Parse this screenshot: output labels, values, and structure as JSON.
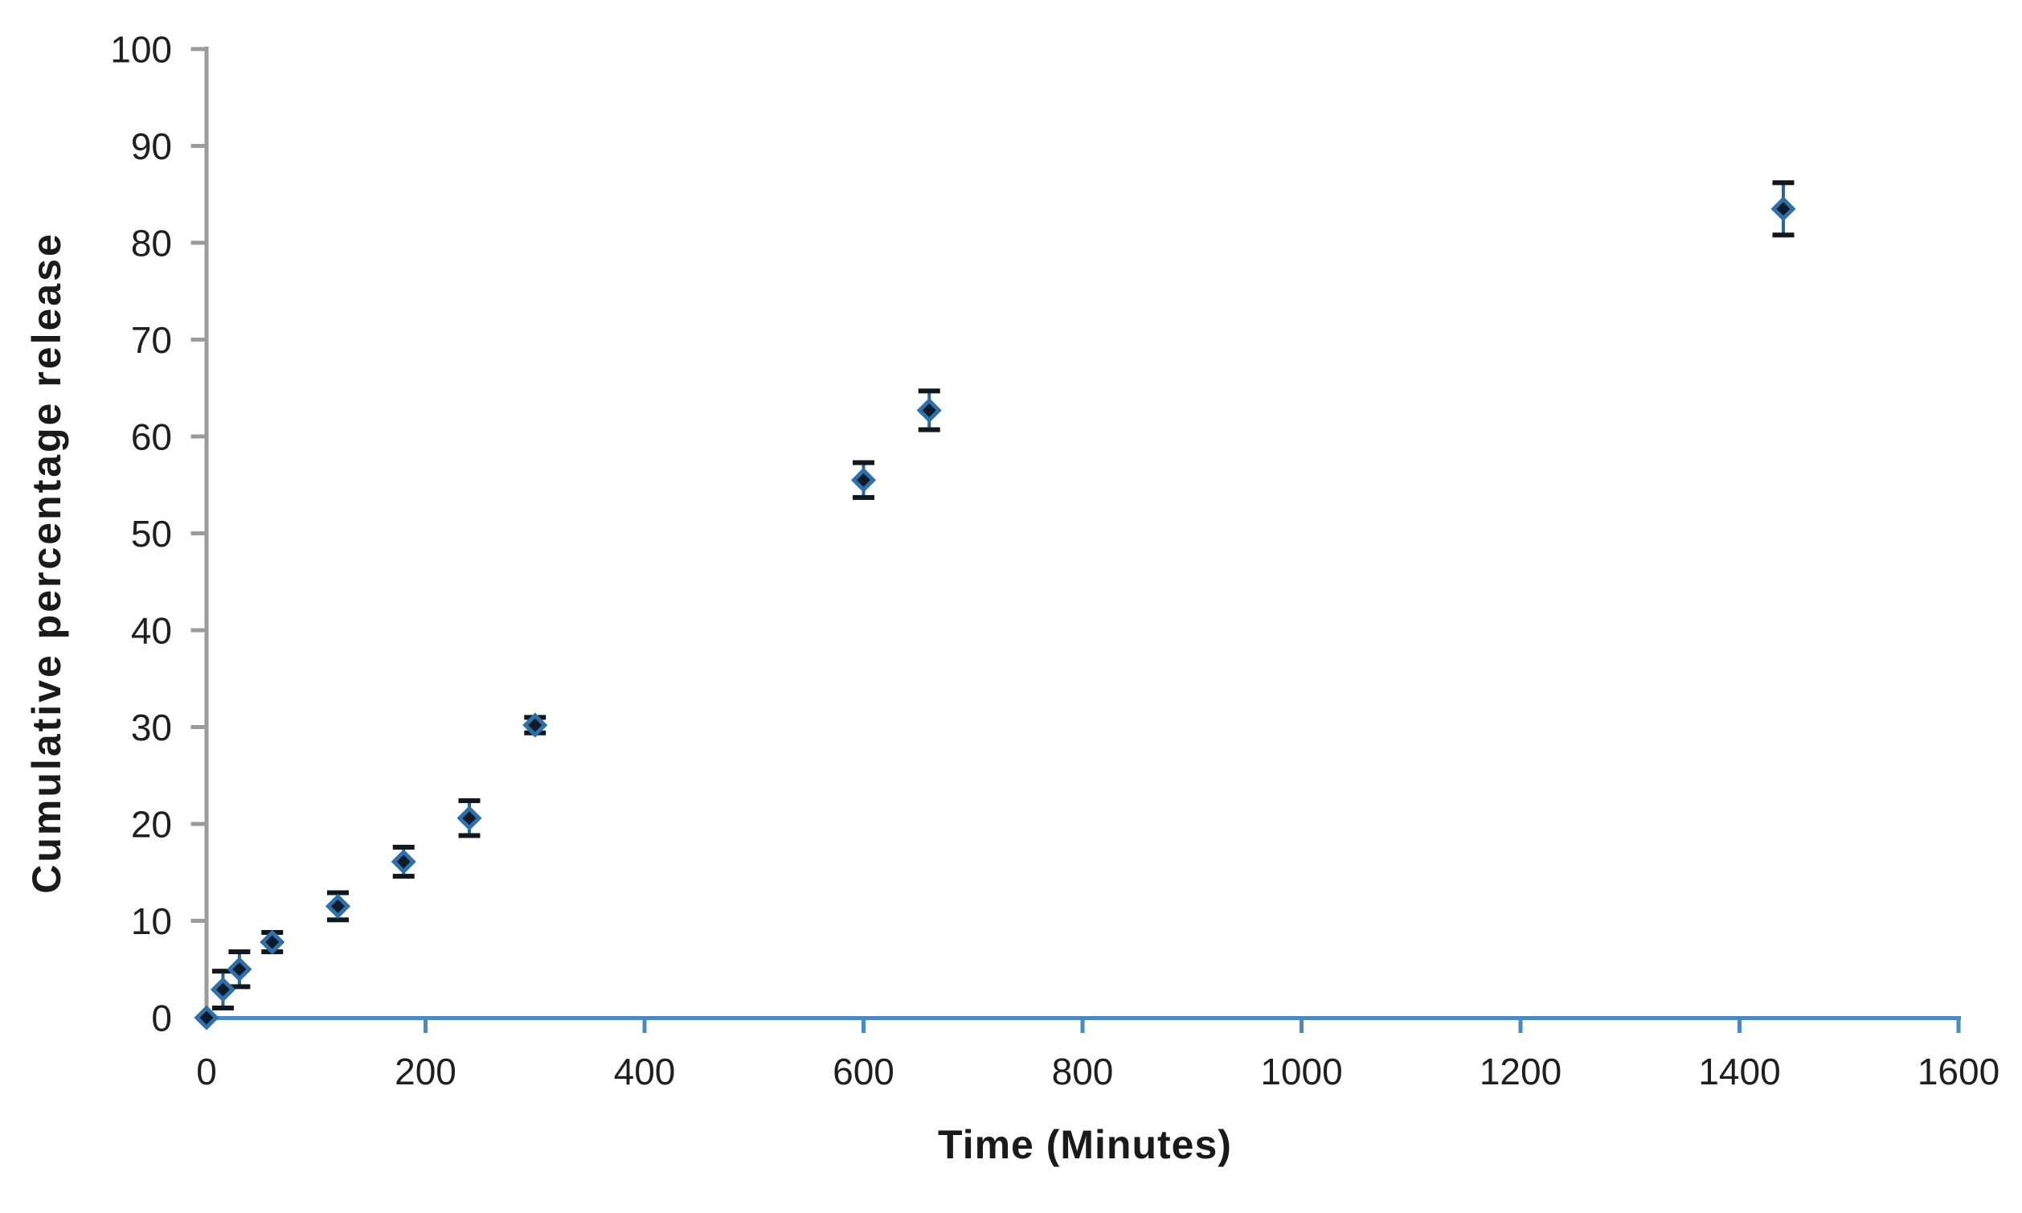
{
  "figure": {
    "background": "#ffffff",
    "title": ""
  },
  "chart_data": {
    "type": "scatter",
    "title": "",
    "xlabel": "Time (Minutes)",
    "ylabel": "Cumulative percentage release",
    "xlim": [
      0,
      1600
    ],
    "ylim": [
      0,
      100
    ],
    "x_ticks": [
      0,
      200,
      400,
      600,
      800,
      1000,
      1200,
      1400,
      1600
    ],
    "y_ticks": [
      0,
      10,
      20,
      30,
      40,
      50,
      60,
      70,
      80,
      90,
      100
    ],
    "grid": false,
    "legend": false,
    "series": [
      {
        "name": "Cumulative percentage release",
        "marker": "diamond",
        "x": [
          0,
          15,
          30,
          60,
          120,
          180,
          240,
          300,
          600,
          660,
          1440
        ],
        "y": [
          0,
          2.9,
          5.0,
          7.8,
          11.5,
          16.1,
          20.6,
          30.2,
          55.5,
          62.7,
          83.5
        ],
        "y_err": [
          0,
          1.9,
          1.8,
          1.0,
          1.4,
          1.5,
          1.8,
          0.8,
          1.8,
          2.0,
          2.7
        ]
      }
    ],
    "colors": {
      "x_axis": "#4b89c0",
      "y_axis": "#9b9b9b",
      "tick_label": "#1f1f1f",
      "marker_fill": "#0d1b2a",
      "marker_edge": "#3070a8",
      "error_line": "#2e6496",
      "error_cap": "#10181f",
      "background": "#ffffff"
    }
  }
}
